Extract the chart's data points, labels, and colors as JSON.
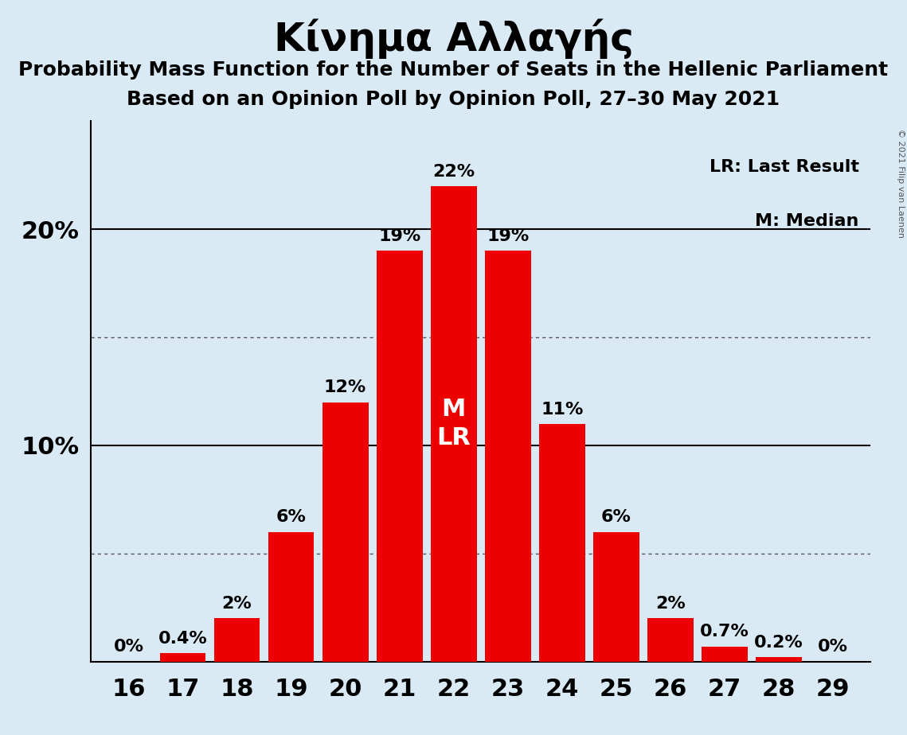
{
  "title": "Κίνημα Αλλαγής",
  "subtitle1": "Probability Mass Function for the Number of Seats in the Hellenic Parliament",
  "subtitle2": "Based on an Opinion Poll by Opinion Poll, 27–30 May 2021",
  "copyright": "© 2021 Filip van Laenen",
  "seats": [
    16,
    17,
    18,
    19,
    20,
    21,
    22,
    23,
    24,
    25,
    26,
    27,
    28,
    29
  ],
  "probabilities": [
    0.0,
    0.4,
    2.0,
    6.0,
    12.0,
    19.0,
    22.0,
    19.0,
    11.0,
    6.0,
    2.0,
    0.7,
    0.2,
    0.0
  ],
  "labels": [
    "0%",
    "0.4%",
    "2%",
    "6%",
    "12%",
    "19%",
    "22%",
    "19%",
    "11%",
    "6%",
    "2%",
    "0.7%",
    "0.2%",
    "0%"
  ],
  "bar_color": "#ee0000",
  "background_color": "#daeaf5",
  "median_seat": 22,
  "last_result_seat": 22,
  "ylim": [
    0,
    25
  ],
  "solid_gridlines": [
    10,
    20
  ],
  "dotted_gridlines": [
    5,
    15
  ],
  "ytick_positions": [
    10,
    20
  ],
  "ytick_labels": [
    "10%",
    "20%"
  ],
  "legend_lr": "LR: Last Result",
  "legend_m": "M: Median",
  "title_fontsize": 36,
  "subtitle_fontsize": 18,
  "label_fontsize": 16,
  "axis_fontsize": 22,
  "ml_fontsize": 22
}
